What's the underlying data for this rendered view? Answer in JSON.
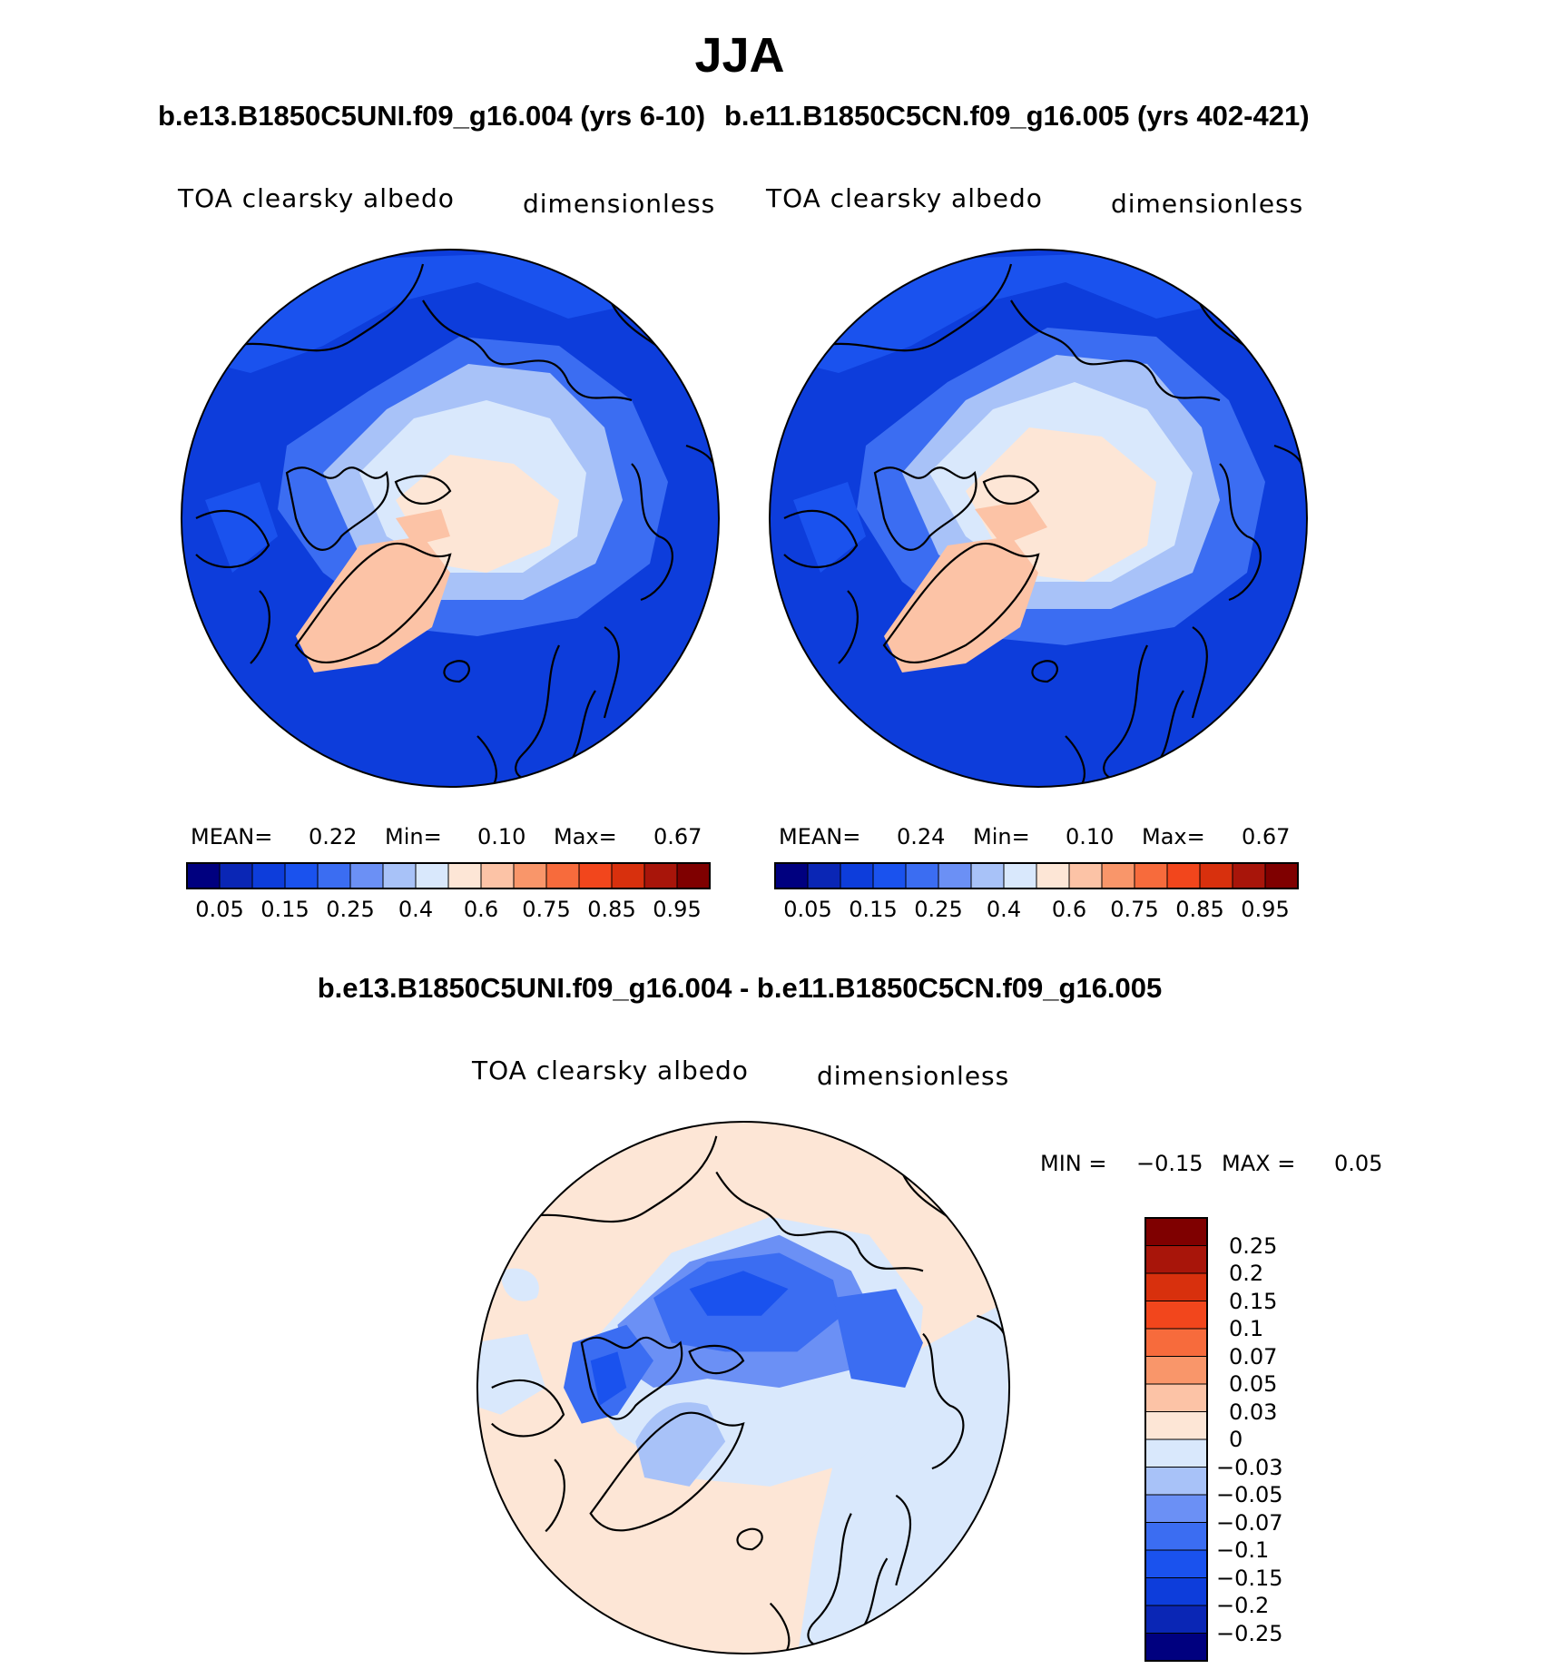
{
  "figure": {
    "title": "JJA",
    "case_a_title": "b.e13.B1850C5UNI.f09_g16.004 (yrs 6-10)",
    "case_b_title": "b.e11.B1850C5CN.f09_g16.005 (yrs 402-421)",
    "diff_title": "b.e13.B1850C5UNI.f09_g16.004 - b.e11.B1850C5CN.f09_g16.005"
  },
  "panels": {
    "a": {
      "variable": "TOA clearsky albedo",
      "units": "dimensionless",
      "mean_label": "MEAN=",
      "mean": "0.22",
      "min_label": "Min=",
      "min": "0.10",
      "max_label": "Max=",
      "max": "0.67"
    },
    "b": {
      "variable": "TOA clearsky albedo",
      "units": "dimensionless",
      "mean_label": "MEAN=",
      "mean": "0.24",
      "min_label": "Min=",
      "min": "0.10",
      "max_label": "Max=",
      "max": "0.67"
    },
    "diff": {
      "variable": "TOA clearsky albedo",
      "units": "dimensionless",
      "min_label": "MIN =",
      "min": "−0.15",
      "max_label": "MAX =",
      "max": "0.05"
    }
  },
  "colorbar_abs": {
    "colors": [
      "#00007f",
      "#0a26b5",
      "#0d3ddb",
      "#1a52ee",
      "#3b6df2",
      "#6b90f5",
      "#a8c2f8",
      "#d9e8fc",
      "#fde6d6",
      "#fcc3a6",
      "#f9966a",
      "#f76b3c",
      "#f2461c",
      "#d8300d",
      "#a8150a",
      "#7f0000"
    ],
    "tick_labels": [
      "0.05",
      "0.15",
      "0.25",
      "0.4",
      "0.6",
      "0.75",
      "0.85",
      "0.95"
    ]
  },
  "colorbar_diff": {
    "colors": [
      "#00007f",
      "#0a26b5",
      "#0d3ddb",
      "#1a52ee",
      "#3b6df2",
      "#6b90f5",
      "#a8c2f8",
      "#d9e8fc",
      "#fde6d6",
      "#fcc3a6",
      "#f9966a",
      "#f76b3c",
      "#f2461c",
      "#d8300d",
      "#a8150a",
      "#7f0000"
    ],
    "tick_labels": [
      "0.25",
      "0.2",
      "0.15",
      "0.1",
      "0.07",
      "0.05",
      "0.03",
      "0",
      "−0.03",
      "−0.05",
      "−0.07",
      "−0.1",
      "−0.15",
      "−0.2",
      "−0.25"
    ]
  }
}
